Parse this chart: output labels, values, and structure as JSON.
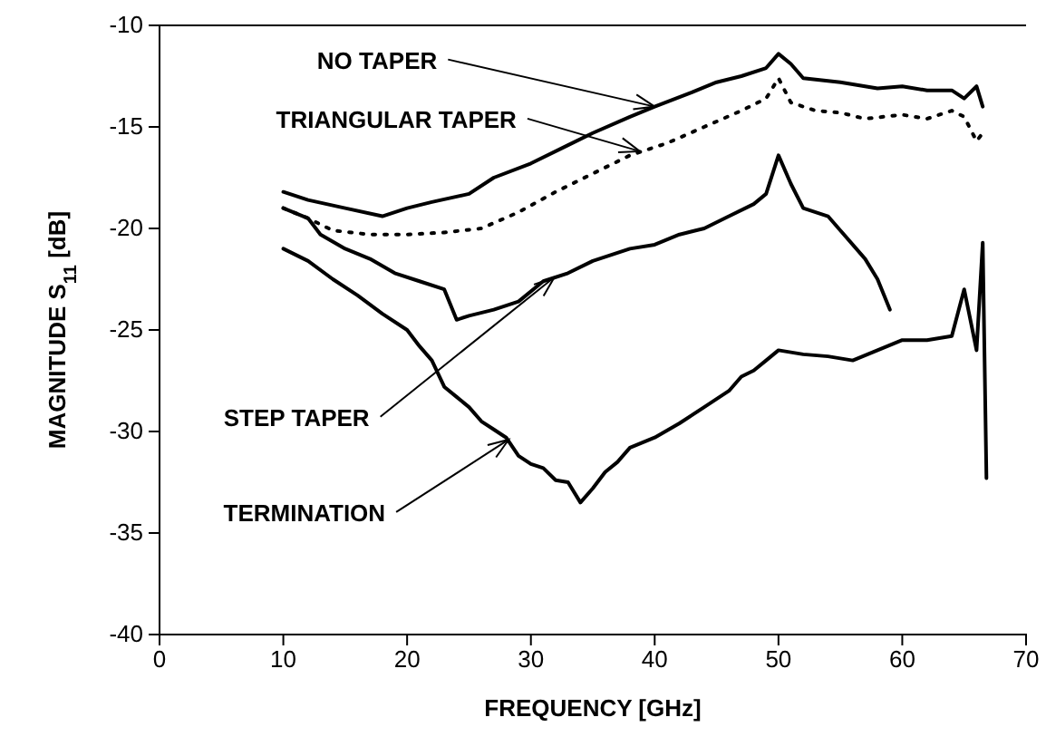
{
  "chart_data": {
    "type": "line",
    "xlabel": "FREQUENCY [GHz]",
    "ylabel": "MAGNITUDE S$_{11}$ [dB]",
    "xlim": [
      0,
      70
    ],
    "ylim": [
      -40,
      -10
    ],
    "xticks": [
      0,
      10,
      20,
      30,
      40,
      50,
      60,
      70
    ],
    "yticks": [
      -40,
      -35,
      -30,
      -25,
      -20,
      -15,
      -10
    ],
    "grid": false,
    "series": [
      {
        "color": "#000000",
        "line_style": "solid",
        "x": [
          10,
          12,
          15,
          18,
          20,
          22,
          25,
          27,
          30,
          33,
          35,
          38,
          40,
          43,
          45,
          47,
          49,
          50,
          51,
          52,
          55,
          58,
          60,
          62,
          64,
          65,
          66,
          66.5
        ],
        "values": [
          -18.2,
          -18.6,
          -19.0,
          -19.4,
          -19.0,
          -18.7,
          -18.3,
          -17.5,
          -16.8,
          -15.9,
          -15.3,
          -14.5,
          -14.0,
          -13.3,
          -12.8,
          -12.5,
          -12.1,
          -11.4,
          -11.9,
          -12.6,
          -12.8,
          -13.1,
          -13.0,
          -13.2,
          -13.2,
          -13.6,
          -13.0,
          -14.0
        ]
      },
      {
        "color": "#000000",
        "line_style": "dotted",
        "x": [
          10,
          12,
          14,
          17,
          20,
          23,
          26,
          29,
          32,
          35,
          38,
          41,
          44,
          47,
          49,
          50,
          51,
          53,
          55,
          57,
          60,
          62,
          64,
          65,
          66,
          66.5
        ],
        "values": [
          -19.0,
          -19.5,
          -20.1,
          -20.3,
          -20.3,
          -20.2,
          -20.0,
          -19.2,
          -18.2,
          -17.3,
          -16.4,
          -15.8,
          -15.0,
          -14.2,
          -13.6,
          -12.6,
          -13.8,
          -14.2,
          -14.3,
          -14.6,
          -14.4,
          -14.6,
          -14.2,
          -14.5,
          -15.7,
          -15.3
        ]
      },
      {
        "color": "#000000",
        "line_style": "solid",
        "x": [
          10,
          12,
          13,
          15,
          17,
          19,
          21,
          23,
          24,
          25,
          27,
          29,
          31,
          33,
          35,
          38,
          40,
          42,
          44,
          46,
          48,
          49,
          50,
          51,
          52,
          54,
          55,
          57,
          58,
          59
        ],
        "values": [
          -19.0,
          -19.5,
          -20.3,
          -21.0,
          -21.5,
          -22.2,
          -22.6,
          -23.0,
          -24.5,
          -24.3,
          -24.0,
          -23.6,
          -22.6,
          -22.2,
          -21.6,
          -21.0,
          -20.8,
          -20.3,
          -20.0,
          -19.4,
          -18.8,
          -18.3,
          -16.4,
          -17.8,
          -19.0,
          -19.4,
          -20.1,
          -21.5,
          -22.5,
          -24.0
        ]
      },
      {
        "color": "#000000",
        "line_style": "solid",
        "x": [
          10,
          12,
          14,
          16,
          18,
          20,
          21,
          22,
          23,
          24,
          25,
          26,
          27,
          28,
          29,
          30,
          31,
          32,
          33,
          34,
          35,
          36,
          37,
          38,
          40,
          42,
          44,
          46,
          47,
          48,
          49,
          50,
          52,
          54,
          56,
          58,
          60,
          62,
          64,
          65,
          66,
          66.5,
          66.8
        ],
        "values": [
          -21.0,
          -21.6,
          -22.5,
          -23.3,
          -24.2,
          -25.0,
          -25.8,
          -26.5,
          -27.8,
          -28.3,
          -28.8,
          -29.5,
          -29.9,
          -30.3,
          -31.2,
          -31.6,
          -31.8,
          -32.4,
          -32.5,
          -33.5,
          -32.8,
          -32.0,
          -31.5,
          -30.8,
          -30.3,
          -29.6,
          -28.8,
          -28.0,
          -27.3,
          -27.0,
          -26.5,
          -26.0,
          -26.2,
          -26.3,
          -26.5,
          -26.0,
          -25.5,
          -25.5,
          -25.3,
          -23.0,
          -26.0,
          -20.7,
          -32.3
        ]
      }
    ],
    "annotations": [
      {
        "text": "NO TAPER",
        "x": 40,
        "y": -14
      },
      {
        "text": "TRIANGULAR TAPER",
        "x": 38.8,
        "y": -16.2
      },
      {
        "text": "STEP TAPER",
        "x": 31.9,
        "y": -22.4
      },
      {
        "text": "TERMINATION",
        "x": 28.2,
        "y": -30.4
      }
    ]
  }
}
